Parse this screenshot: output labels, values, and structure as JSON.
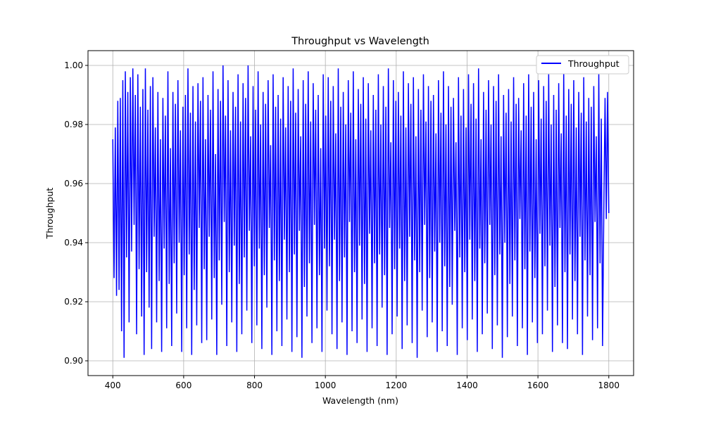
{
  "chart_data": {
    "type": "line",
    "title": "Throughput vs Wavelength",
    "xlabel": "Wavelength (nm)",
    "ylabel": "Throughput",
    "xlim": [
      330,
      1870
    ],
    "ylim": [
      0.895,
      1.005
    ],
    "xticks": [
      400,
      600,
      800,
      1000,
      1200,
      1400,
      1600,
      1800
    ],
    "yticks": [
      0.9,
      0.92,
      0.94,
      0.96,
      0.98,
      1.0
    ],
    "xtick_labels": [
      "400",
      "600",
      "800",
      "1000",
      "1200",
      "1400",
      "1600",
      "1800"
    ],
    "ytick_labels": [
      "0.90",
      "0.92",
      "0.94",
      "0.96",
      "0.98",
      "1.00"
    ],
    "grid": true,
    "legend_position": "top-right",
    "x_range": [
      400,
      1800
    ],
    "y_range": [
      0.9,
      1.0
    ],
    "series": [
      {
        "name": "Throughput",
        "color": "#0000ff",
        "values": [
          0.975,
          0.928,
          0.979,
          0.922,
          0.988,
          0.924,
          0.989,
          0.91,
          0.995,
          0.901,
          0.998,
          0.935,
          0.991,
          0.913,
          0.996,
          0.937,
          0.999,
          0.946,
          0.99,
          0.909,
          0.997,
          0.931,
          0.986,
          0.915,
          0.992,
          0.902,
          0.999,
          0.93,
          0.985,
          0.918,
          0.993,
          0.904,
          0.996,
          0.942,
          0.979,
          0.913,
          0.991,
          0.927,
          0.975,
          0.903,
          0.989,
          0.938,
          0.983,
          0.911,
          0.998,
          0.926,
          0.972,
          0.905,
          0.991,
          0.933,
          0.987,
          0.916,
          0.995,
          0.94,
          0.978,
          0.903,
          0.986,
          0.929,
          0.99,
          0.911,
          0.999,
          0.936,
          0.984,
          0.902,
          0.993,
          0.924,
          0.981,
          0.912,
          0.994,
          0.945,
          0.988,
          0.906,
          0.996,
          0.931,
          0.975,
          0.907,
          0.99,
          0.942,
          0.985,
          0.914,
          0.998,
          0.928,
          0.97,
          0.902,
          0.992,
          0.934,
          0.988,
          0.919,
          1.0,
          0.947,
          0.983,
          0.905,
          0.995,
          0.93,
          0.978,
          0.913,
          0.991,
          0.939,
          0.986,
          0.903,
          0.997,
          0.926,
          0.981,
          0.909,
          0.994,
          0.935,
          0.989,
          0.917,
          1.0,
          0.944,
          0.976,
          0.906,
          0.993,
          0.932,
          0.985,
          0.912,
          0.998,
          0.938,
          0.98,
          0.904,
          0.991,
          0.929,
          0.987,
          0.918,
          0.995,
          0.945,
          0.973,
          0.902,
          0.997,
          0.934,
          0.986,
          0.91,
          0.99,
          0.927,
          0.982,
          0.905,
          0.996,
          0.941,
          0.979,
          0.914,
          0.993,
          0.93,
          0.988,
          0.903,
          0.999,
          0.936,
          0.984,
          0.908,
          0.992,
          0.944,
          0.976,
          0.901,
          0.995,
          0.925,
          0.987,
          0.915,
          0.998,
          0.933,
          0.981,
          0.906,
          0.994,
          0.946,
          0.985,
          0.911,
          0.99,
          0.929,
          0.972,
          0.903,
          0.997,
          0.938,
          0.983,
          0.917,
          0.996,
          0.932,
          0.988,
          0.909,
          0.993,
          0.941,
          0.977,
          0.904,
          0.999,
          0.927,
          0.986,
          0.913,
          0.991,
          0.935,
          0.98,
          0.902,
          0.995,
          0.947,
          0.984,
          0.91,
          0.998,
          0.93,
          0.975,
          0.906,
          0.992,
          0.939,
          0.987,
          0.914,
          0.996,
          0.926,
          0.982,
          0.903,
          0.994,
          0.943,
          0.978,
          0.911,
          0.99,
          0.933,
          0.985,
          0.905,
          0.997,
          0.936,
          0.98,
          0.918,
          0.993,
          0.929,
          0.986,
          0.902,
          0.999,
          0.945,
          0.974,
          0.909,
          0.995,
          0.931,
          0.988,
          0.915,
          0.991,
          0.938,
          0.983,
          0.904,
          0.998,
          0.927,
          0.979,
          0.912,
          0.994,
          0.942,
          0.987,
          0.906,
          0.996,
          0.934,
          0.976,
          0.901,
          0.992,
          0.93,
          0.985,
          0.917,
          0.997,
          0.946,
          0.981,
          0.908,
          0.993,
          0.928,
          0.988,
          0.913,
          0.99,
          0.937,
          0.977,
          0.903,
          0.995,
          0.94,
          0.984,
          0.91,
          0.998,
          0.932,
          0.98,
          0.905,
          0.993,
          0.925,
          0.986,
          0.919,
          0.989,
          0.944,
          0.974,
          0.902,
          0.996,
          0.935,
          0.983,
          0.911,
          0.992,
          0.93,
          0.979,
          0.907,
          0.997,
          0.941,
          0.987,
          0.914,
          0.994,
          0.927,
          0.982,
          0.903,
          0.999,
          0.938,
          0.975,
          0.909,
          0.991,
          0.933,
          0.985,
          0.916,
          0.995,
          0.946,
          0.98,
          0.904,
          0.993,
          0.929,
          0.988,
          0.912,
          0.997,
          0.936,
          0.976,
          0.901,
          0.99,
          0.94,
          0.984,
          0.908,
          0.992,
          0.926,
          0.981,
          0.915,
          0.996,
          0.934,
          0.987,
          0.905,
          0.989,
          0.948,
          0.978,
          0.911,
          0.994,
          0.931,
          0.983,
          0.902,
          0.997,
          0.937,
          0.986,
          0.913,
          0.991,
          0.928,
          0.975,
          0.906,
          0.995,
          0.943,
          0.982,
          0.909,
          0.993,
          0.932,
          0.988,
          0.917,
          0.997,
          0.939,
          0.98,
          0.903,
          0.99,
          0.925,
          0.985,
          0.912,
          0.994,
          0.945,
          0.977,
          0.906,
          0.998,
          0.93,
          0.983,
          0.904,
          0.992,
          0.936,
          0.987,
          0.914,
          0.995,
          0.927,
          0.979,
          0.909,
          0.991,
          0.942,
          0.984,
          0.902,
          0.996,
          0.934,
          0.981,
          0.915,
          0.989,
          0.929,
          0.986,
          0.907,
          0.993,
          0.947,
          0.976,
          0.911,
          0.997,
          0.933,
          0.982,
          0.905,
          0.95,
          0.989,
          0.948,
          0.991,
          0.95
        ]
      }
    ]
  }
}
